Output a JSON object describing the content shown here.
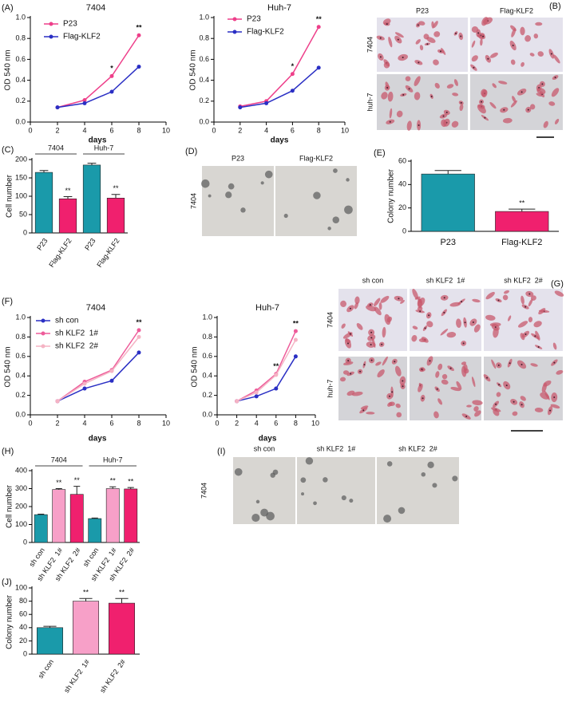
{
  "chart_data": [
    {
      "type": "line",
      "panel": "(A)",
      "title": "7404",
      "x_label": "days",
      "y_label": "OD 540 nm",
      "x": [
        2,
        4,
        6,
        8
      ],
      "xlim": [
        0,
        10
      ],
      "xticks": [
        0,
        2,
        4,
        6,
        8,
        10
      ],
      "ylim": [
        0,
        1
      ],
      "yticks": [
        {
          "value": 0,
          "label": "0.0"
        },
        0.2,
        0.4,
        0.6,
        0.8,
        {
          "value": 1,
          "label": "1.0"
        }
      ],
      "series": [
        {
          "name": "P23",
          "color": "#ee3f8a",
          "values": [
            0.14,
            0.21,
            0.44,
            0.83
          ]
        },
        {
          "name": "Flag-KLF2",
          "color": "#2a2fc4",
          "values": [
            0.14,
            0.18,
            0.29,
            0.53
          ]
        }
      ],
      "annotations": [
        {
          "x": 6,
          "text": "*"
        },
        {
          "x": 8,
          "text": "**"
        }
      ]
    },
    {
      "type": "line",
      "title": "Huh-7",
      "x_label": "days",
      "y_label": "OD 540 nm",
      "x": [
        2,
        4,
        6,
        8
      ],
      "xlim": [
        0,
        10
      ],
      "xticks": [
        0,
        2,
        4,
        6,
        8,
        10
      ],
      "ylim": [
        0,
        1
      ],
      "yticks": [
        {
          "value": 0,
          "label": "0.0"
        },
        0.2,
        0.4,
        0.6,
        0.8,
        {
          "value": 1,
          "label": "1.0"
        }
      ],
      "series": [
        {
          "name": "P23",
          "color": "#ee3f8a",
          "values": [
            0.15,
            0.2,
            0.46,
            0.91
          ]
        },
        {
          "name": "Flag-KLF2",
          "color": "#2a2fc4",
          "values": [
            0.14,
            0.18,
            0.3,
            0.52
          ]
        }
      ],
      "annotations": [
        {
          "x": 6,
          "text": "*"
        },
        {
          "x": 8,
          "text": "**"
        }
      ]
    },
    {
      "type": "bar",
      "panel": "(C)",
      "y_label": "Cell number",
      "categories": [
        "P23",
        "Flag-KLF2",
        "P23",
        "Flag-KLF2"
      ],
      "groups": [
        "7404",
        "Huh-7"
      ],
      "values": [
        165,
        93,
        185,
        95
      ],
      "errors": [
        5,
        6,
        5,
        10
      ],
      "colors": [
        "#1a9aaa",
        "#f0206e",
        "#1a9aaa",
        "#f0206e"
      ],
      "ylim": [
        0,
        200
      ],
      "yticks": [
        0,
        50,
        100,
        150,
        200
      ],
      "annotations": [
        {
          "index": 1,
          "text": "**"
        },
        {
          "index": 3,
          "text": "**"
        }
      ]
    },
    {
      "type": "bar",
      "panel": "(E)",
      "y_label": "Colony number",
      "categories": [
        "P23",
        "Flag-KLF2"
      ],
      "values": [
        49,
        17
      ],
      "errors": [
        3,
        2
      ],
      "colors": [
        "#1a9aaa",
        "#f0206e"
      ],
      "ylim": [
        0,
        60
      ],
      "yticks": [
        0,
        20,
        40,
        60
      ],
      "annotations": [
        {
          "index": 1,
          "text": "**"
        }
      ]
    },
    {
      "type": "line",
      "panel": "(F)",
      "title": "7404",
      "x_label": "days",
      "y_label": "OD 540 nm",
      "x": [
        2,
        4,
        6,
        8
      ],
      "xlim": [
        0,
        10
      ],
      "xticks": [
        0,
        2,
        4,
        6,
        8,
        10
      ],
      "ylim": [
        0,
        1
      ],
      "yticks": [
        {
          "value": 0,
          "label": "0.0"
        },
        0.2,
        0.4,
        0.6,
        0.8,
        {
          "value": 1,
          "label": "1.0"
        }
      ],
      "series": [
        {
          "name": "sh con",
          "color": "#2a2fc4",
          "values": [
            0.14,
            0.27,
            0.35,
            0.64
          ]
        },
        {
          "name": "sh KLF2  1#",
          "color": "#ee5c9a",
          "values": [
            0.14,
            0.34,
            0.46,
            0.87
          ]
        },
        {
          "name": "sh KLF2  2#",
          "color": "#f5b3c4",
          "values": [
            0.14,
            0.32,
            0.45,
            0.8
          ]
        }
      ],
      "annotations": [
        {
          "x": 8,
          "text": "**"
        }
      ]
    },
    {
      "type": "line",
      "title": "Huh-7",
      "x_label": "days",
      "y_label": "OD 540 nm",
      "x": [
        2,
        4,
        6,
        8
      ],
      "xlim": [
        0,
        10
      ],
      "xticks": [
        0,
        2,
        4,
        6,
        8,
        10
      ],
      "ylim": [
        0,
        1
      ],
      "yticks": [
        {
          "value": 0,
          "label": "0.0"
        },
        0.2,
        0.4,
        0.6,
        0.8,
        {
          "value": 1,
          "label": "1.0"
        }
      ],
      "series": [
        {
          "color": "#2a2fc4",
          "values": [
            0.14,
            0.19,
            0.27,
            0.6
          ]
        },
        {
          "color": "#ee5c9a",
          "values": [
            0.14,
            0.25,
            0.42,
            0.86
          ]
        },
        {
          "color": "#f5b3c4",
          "values": [
            0.14,
            0.23,
            0.41,
            0.77
          ]
        }
      ],
      "annotations": [
        {
          "x": 6,
          "text": "**"
        },
        {
          "x": 8,
          "text": "**"
        }
      ]
    },
    {
      "type": "bar",
      "panel": "(H)",
      "y_label": "Cell number",
      "categories": [
        "sh con",
        "sh KLF2  1#",
        "sh KLF2  2#",
        "sh con",
        "sh KLF2  1#",
        "sh KLF2  2#"
      ],
      "groups": [
        "7404",
        "Huh-7"
      ],
      "values": [
        155,
        295,
        268,
        133,
        300,
        298
      ],
      "errors": [
        3,
        5,
        45,
        3,
        10,
        8
      ],
      "colors": [
        "#1a9aaa",
        "#f7a0c8",
        "#f0206e",
        "#1a9aaa",
        "#f7a0c8",
        "#f0206e"
      ],
      "ylim": [
        0,
        400
      ],
      "yticks": [
        0,
        100,
        200,
        300,
        400
      ],
      "annotations": [
        {
          "index": 1,
          "text": "**"
        },
        {
          "index": 2,
          "text": "**"
        },
        {
          "index": 4,
          "text": "**"
        },
        {
          "index": 5,
          "text": "**"
        }
      ]
    },
    {
      "type": "bar",
      "panel": "(J)",
      "y_label": "Colony number",
      "categories": [
        "sh con",
        "sh KLF2  1#",
        "sh KLF2  2#"
      ],
      "values": [
        40,
        80,
        77
      ],
      "errors": [
        2,
        4,
        7
      ],
      "colors": [
        "#1a9aaa",
        "#f7a0c8",
        "#f0206e"
      ],
      "ylim": [
        0,
        100
      ],
      "yticks": [
        0,
        20,
        40,
        60,
        80,
        100
      ],
      "annotations": [
        {
          "index": 1,
          "text": "**"
        },
        {
          "index": 2,
          "text": "**"
        }
      ]
    }
  ],
  "image_panels": [
    {
      "panel": "(B)",
      "columns": [
        "P23",
        "Flag-KLF2"
      ],
      "rows": [
        "7404",
        "huh-7"
      ]
    },
    {
      "panel": "(D)",
      "columns": [
        "P23",
        "Flag-KLF2"
      ],
      "rows": [
        "7404"
      ]
    },
    {
      "panel": "(G)",
      "columns": [
        "sh con",
        "sh KLF2  1#",
        "sh KLF2  2#"
      ],
      "rows": [
        "7404",
        "huh-7"
      ]
    },
    {
      "panel": "(I)",
      "columns": [
        "sh con",
        "sh KLF2  1#",
        "sh KLF2  2#"
      ],
      "rows": [
        "7404"
      ]
    }
  ]
}
